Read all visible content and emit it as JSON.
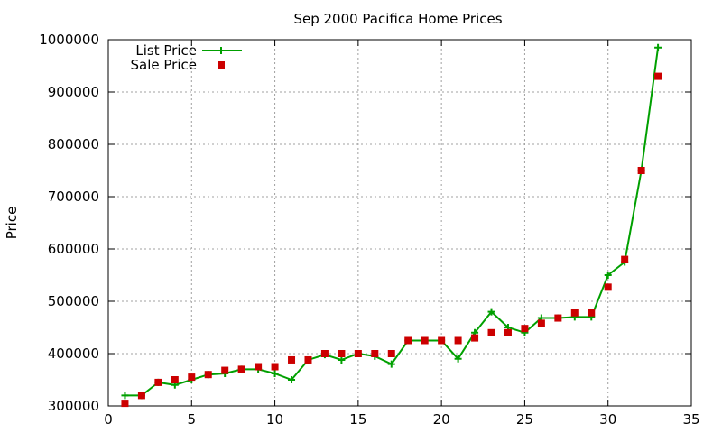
{
  "chart_data": {
    "type": "line",
    "title": "Sep 2000 Pacifica Home Prices",
    "xlabel": "",
    "ylabel": "Price",
    "xlim": [
      0,
      35
    ],
    "ylim": [
      300000,
      1000000
    ],
    "xticks": [
      0,
      5,
      10,
      15,
      20,
      25,
      30,
      35
    ],
    "yticks": [
      300000,
      400000,
      500000,
      600000,
      700000,
      800000,
      900000,
      1000000
    ],
    "grid": true,
    "legend_position": "top-left",
    "x": [
      1,
      2,
      3,
      4,
      5,
      6,
      7,
      8,
      9,
      10,
      11,
      12,
      13,
      14,
      15,
      16,
      17,
      18,
      19,
      20,
      21,
      22,
      23,
      24,
      25,
      26,
      27,
      28,
      29,
      30,
      31,
      32,
      33
    ],
    "series": [
      {
        "name": "List Price",
        "style": "line-with-plus-markers",
        "color": "#00a000",
        "values": [
          320000,
          320000,
          345000,
          340000,
          350000,
          360000,
          362000,
          370000,
          370000,
          362000,
          350000,
          388000,
          398000,
          388000,
          400000,
          395000,
          380000,
          425000,
          425000,
          425000,
          390000,
          440000,
          480000,
          450000,
          440000,
          468000,
          468000,
          470000,
          470000,
          550000,
          575000,
          750000,
          985000
        ]
      },
      {
        "name": "Sale Price",
        "style": "square-markers",
        "color": "#cc0000",
        "values": [
          305000,
          320000,
          345000,
          350000,
          355000,
          360000,
          368000,
          370000,
          375000,
          375000,
          388000,
          388000,
          400000,
          400000,
          400000,
          400000,
          400000,
          425000,
          425000,
          425000,
          425000,
          430000,
          440000,
          440000,
          448000,
          458000,
          468000,
          478000,
          478000,
          527000,
          580000,
          750000,
          930000
        ]
      }
    ]
  }
}
